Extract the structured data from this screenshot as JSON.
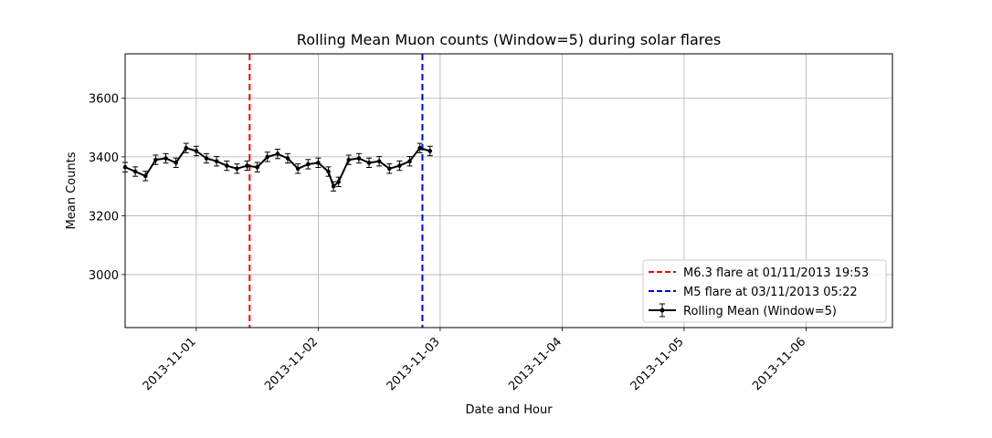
{
  "chart_data": {
    "type": "line",
    "title": "Rolling Mean Muon counts (Window=5) during solar flares",
    "xlabel": "Date and Hour",
    "ylabel": "Mean Counts",
    "x_range": [
      "2013-10-31 10:00",
      "2013-11-06 17:00"
    ],
    "ylim": [
      2820,
      3750
    ],
    "y_ticks": [
      3000,
      3200,
      3400,
      3600
    ],
    "x_ticks": [
      "2013-11-01",
      "2013-11-02",
      "2013-11-03",
      "2013-11-04",
      "2013-11-05",
      "2013-11-06"
    ],
    "grid": true,
    "legend_position": "lower-right",
    "vlines": [
      {
        "x": "2013-11-01 10:30",
        "label": "M6.3 flare at 01/11/2013 19:53",
        "color": "#ff0000",
        "style": "dashed"
      },
      {
        "x": "2013-11-02 20:30",
        "label": "M5 flare at 03/11/2013 05:22",
        "color": "#0000ff",
        "style": "dashed"
      }
    ],
    "series": [
      {
        "name": "Rolling Mean (Window=5)",
        "color": "#000000",
        "error_bar": 16,
        "points": [
          [
            "2013-10-31 10:00",
            3365
          ],
          [
            "2013-10-31 12:00",
            3350
          ],
          [
            "2013-10-31 14:00",
            3335
          ],
          [
            "2013-10-31 16:00",
            3390
          ],
          [
            "2013-10-31 18:00",
            3395
          ],
          [
            "2013-10-31 20:00",
            3380
          ],
          [
            "2013-10-31 22:00",
            3430
          ],
          [
            "2013-11-01 00:00",
            3420
          ],
          [
            "2013-11-01 02:00",
            3395
          ],
          [
            "2013-11-01 04:00",
            3385
          ],
          [
            "2013-11-01 06:00",
            3370
          ],
          [
            "2013-11-01 08:00",
            3360
          ],
          [
            "2013-11-01 10:00",
            3370
          ],
          [
            "2013-11-01 12:00",
            3365
          ],
          [
            "2013-11-01 14:00",
            3400
          ],
          [
            "2013-11-01 16:00",
            3410
          ],
          [
            "2013-11-01 18:00",
            3395
          ],
          [
            "2013-11-01 20:00",
            3360
          ],
          [
            "2013-11-01 22:00",
            3375
          ],
          [
            "2013-11-02 00:00",
            3380
          ],
          [
            "2013-11-02 02:00",
            3350
          ],
          [
            "2013-11-02 03:00",
            3300
          ],
          [
            "2013-11-02 04:00",
            3315
          ],
          [
            "2013-11-02 06:00",
            3390
          ],
          [
            "2013-11-02 08:00",
            3395
          ],
          [
            "2013-11-02 10:00",
            3380
          ],
          [
            "2013-11-02 12:00",
            3385
          ],
          [
            "2013-11-02 14:00",
            3360
          ],
          [
            "2013-11-02 16:00",
            3370
          ],
          [
            "2013-11-02 18:00",
            3385
          ],
          [
            "2013-11-02 20:00",
            3430
          ],
          [
            "2013-11-02 22:00",
            3420
          ]
        ]
      }
    ]
  },
  "legend": {
    "items": [
      {
        "label": "M6.3 flare at 01/11/2013 19:53"
      },
      {
        "label": "M5 flare at 03/11/2013 05:22"
      },
      {
        "label": "Rolling Mean (Window=5)"
      }
    ]
  }
}
